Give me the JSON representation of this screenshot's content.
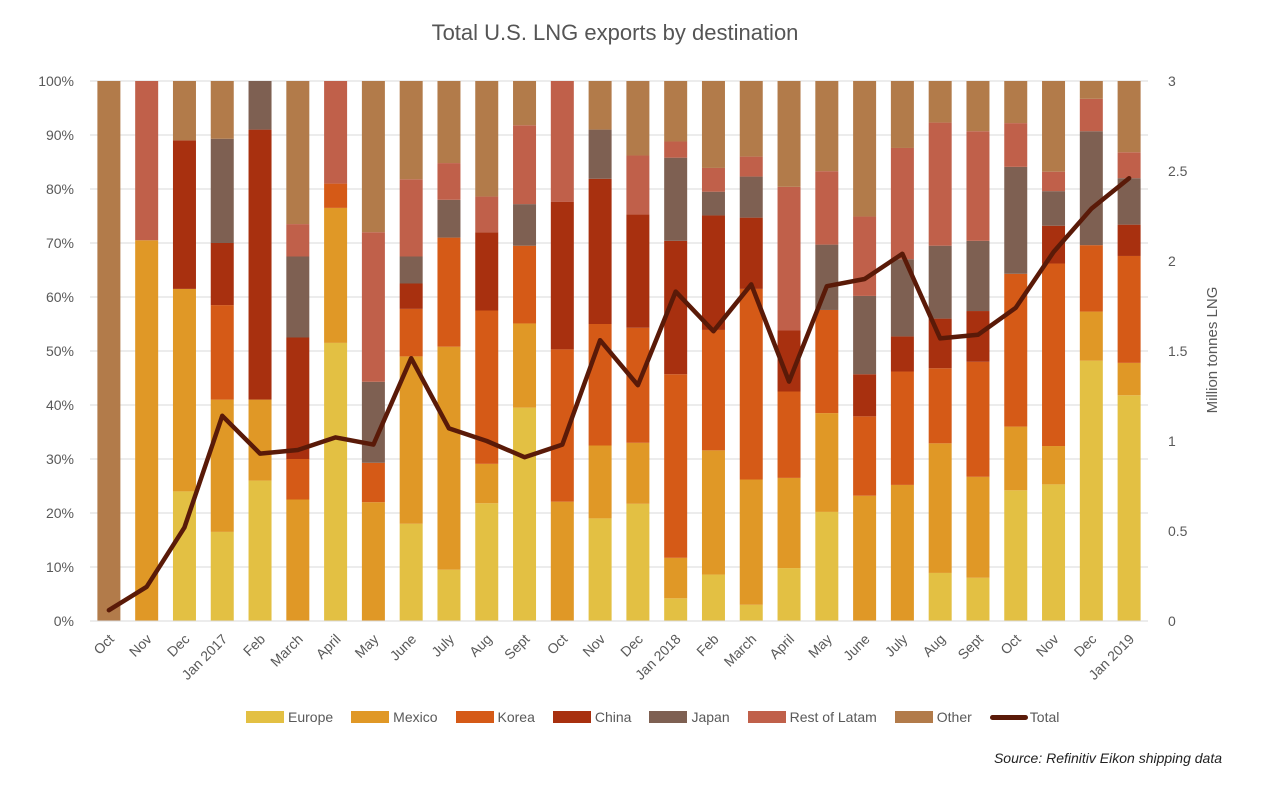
{
  "chart_data": {
    "type": "bar",
    "stacked": "percent",
    "title": "Total U.S. LNG exports by destination",
    "xlabel": "",
    "ylabel": "",
    "y2label": "Million tonnes LNG",
    "ylim": [
      0,
      100
    ],
    "y2lim": [
      0,
      3
    ],
    "yticks": [
      "0%",
      "10%",
      "20%",
      "30%",
      "40%",
      "50%",
      "60%",
      "70%",
      "80%",
      "90%",
      "100%"
    ],
    "y2ticks": [
      "0",
      "0.5",
      "1",
      "1.5",
      "2",
      "2.5",
      "3"
    ],
    "grid": true,
    "legend_position": "bottom",
    "source": "Source: Refinitiv Eikon shipping data",
    "categories": [
      "Oct",
      "Nov",
      "Dec",
      "Jan 2017",
      "Feb",
      "March",
      "April",
      "May",
      "June",
      "July",
      "Aug",
      "Sept",
      "Oct",
      "Nov",
      "Dec",
      "Jan 2018",
      "Feb",
      "March",
      "April",
      "May",
      "June",
      "July",
      "Aug",
      "Sept",
      "Oct",
      "Nov",
      "Dec",
      "Jan 2019"
    ],
    "series": [
      {
        "name": "Europe",
        "color": "#E3C043",
        "values": [
          0,
          0,
          24,
          16.5,
          26,
          0,
          51.5,
          0,
          18,
          9.5,
          21.8,
          39.5,
          0,
          19,
          21.7,
          4.2,
          8.6,
          3,
          9.8,
          20.2,
          0,
          0,
          8.9,
          8,
          24.2,
          25.3,
          48.2,
          41.8
        ]
      },
      {
        "name": "Mexico",
        "color": "#E09826",
        "values": [
          0,
          70.5,
          37.5,
          24.5,
          15,
          22.5,
          25,
          22,
          31,
          41.3,
          7.3,
          15.6,
          22.1,
          13.5,
          11.3,
          7.5,
          23,
          23.2,
          16.7,
          18.3,
          23.2,
          25.2,
          24,
          18.7,
          11.8,
          7.1,
          9.1,
          6
        ]
      },
      {
        "name": "Korea",
        "color": "#D55A17",
        "values": [
          0,
          0,
          0,
          17.5,
          0,
          7.5,
          4.5,
          7.3,
          8.8,
          20.2,
          28.4,
          14.4,
          28.2,
          22.5,
          21.3,
          34,
          22.3,
          35.3,
          16,
          19.1,
          14.7,
          21,
          13.9,
          21.3,
          28.3,
          33.8,
          12.3,
          19.8
        ]
      },
      {
        "name": "China",
        "color": "#A8300F",
        "values": [
          0,
          0,
          27.5,
          11.5,
          50,
          22.5,
          0,
          0,
          4.7,
          0,
          14.5,
          0,
          27.3,
          26.9,
          21,
          24.7,
          21.2,
          13.2,
          11.3,
          0,
          7.8,
          6.5,
          9.2,
          9.4,
          0,
          7,
          0,
          5.8
        ]
      },
      {
        "name": "Japan",
        "color": "#7E6052",
        "values": [
          0,
          0,
          0,
          19.3,
          9,
          15,
          0,
          15,
          5,
          7,
          0,
          7.7,
          0,
          9.1,
          0,
          15.4,
          4.4,
          7.6,
          0,
          12.1,
          14.5,
          14.3,
          13.5,
          13,
          19.8,
          6.4,
          21.1,
          8.6
        ]
      },
      {
        "name": "Rest of Latam",
        "color": "#C0604A",
        "values": [
          0,
          29.5,
          0,
          0,
          0,
          6,
          19,
          27.7,
          14.3,
          6.8,
          6.6,
          14.6,
          22.4,
          0,
          10.9,
          3,
          4.4,
          3.7,
          26.6,
          13.6,
          14.7,
          20.6,
          22.8,
          20.3,
          8.1,
          3.6,
          6,
          4.8
        ]
      },
      {
        "name": "Other",
        "color": "#B27B4A",
        "values": [
          100,
          0,
          11,
          10.7,
          0,
          26.5,
          0,
          28,
          18.2,
          15.2,
          21.4,
          8.2,
          0,
          9,
          13.8,
          11.2,
          16.1,
          14,
          19.6,
          16.7,
          25.1,
          12.4,
          7.7,
          9.3,
          7.8,
          16.8,
          3.3,
          13.2
        ]
      }
    ],
    "line": {
      "name": "Total",
      "color": "#5A1A08",
      "axis": "right",
      "values": [
        0.06,
        0.19,
        0.52,
        1.14,
        0.93,
        0.95,
        1.02,
        0.98,
        1.46,
        1.07,
        1.0,
        0.91,
        0.98,
        1.56,
        1.31,
        1.83,
        1.61,
        1.87,
        1.33,
        1.86,
        1.9,
        2.04,
        1.57,
        1.59,
        1.74,
        2.05,
        2.29,
        2.46
      ]
    }
  }
}
